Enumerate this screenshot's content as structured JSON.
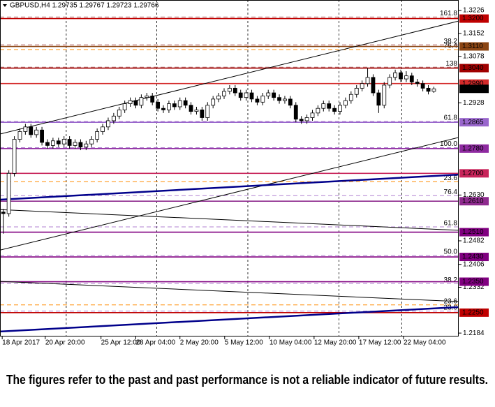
{
  "chart_data": {
    "type": "candlestick",
    "title": "GBPUSD,H4 1.29735 1.29767 1.29723 1.29766",
    "footnote": "The figures refer to the past and past performance is not a reliable indicator of future results.",
    "xlim": [
      -0.6,
      82.5
    ],
    "ylim": [
      1.2173,
      1.326
    ],
    "yticks": [
      {
        "value": 1.3226,
        "label": "1.3226"
      },
      {
        "value": 1.3152,
        "label": "1.3152"
      },
      {
        "value": 1.3078,
        "label": "1.3078"
      },
      {
        "value": 1.2928,
        "label": "1.2928"
      },
      {
        "value": 1.263,
        "label": "1.2630"
      },
      {
        "value": 1.2482,
        "label": "1.2482"
      },
      {
        "value": 1.2406,
        "label": "1.2406"
      },
      {
        "value": 1.2332,
        "label": "1.2332"
      },
      {
        "value": 1.2184,
        "label": "1.2184"
      }
    ],
    "xticks": [
      {
        "value": -0.2,
        "label": "18 Apr 2017"
      },
      {
        "value": 7.6,
        "label": "20 Apr 20:00"
      },
      {
        "value": 17.7,
        "label": "25 Apr 12:00"
      },
      {
        "value": 24,
        "label": "28 Apr 04:00"
      },
      {
        "value": 32,
        "label": "2 May 20:00"
      },
      {
        "value": 40.1,
        "label": "5 May 12:00"
      },
      {
        "value": 48.2,
        "label": "10 May 04:00"
      },
      {
        "value": 56.3,
        "label": "12 May 20:00"
      },
      {
        "value": 64.4,
        "label": "17 May 12:00"
      },
      {
        "value": 72.5,
        "label": "22 May 04:00"
      }
    ],
    "xgrid": [
      11.4,
      27.8,
      44.3,
      60.8,
      72.2
    ],
    "open": [
      1.2575,
      1.257,
      1.27,
      1.281,
      1.2835,
      1.285,
      1.2825,
      1.284,
      1.28,
      1.279,
      1.2805,
      1.2795,
      1.281,
      1.279,
      1.28,
      1.2785,
      1.2795,
      1.281,
      1.2835,
      1.285,
      1.287,
      1.2885,
      1.2905,
      1.2925,
      1.2935,
      1.292,
      1.2945,
      1.295,
      1.293,
      1.291,
      1.2905,
      1.2925,
      1.2915,
      1.2935,
      1.292,
      1.29,
      1.2905,
      1.288,
      1.292,
      1.294,
      1.295,
      1.2965,
      1.2975,
      1.296,
      1.2945,
      1.296,
      1.294,
      1.293,
      1.295,
      1.296,
      1.2945,
      1.2935,
      1.294,
      1.292,
      1.2875,
      1.287,
      1.288,
      1.2895,
      1.291,
      1.2925,
      1.291,
      1.29,
      1.292,
      1.2935,
      1.2955,
      1.2975,
      1.299,
      1.301,
      1.296,
      1.292,
      1.2985,
      1.301,
      1.3025,
      1.3005,
      1.3015,
      1.2995,
      1.299,
      1.2975,
      1.2965
    ],
    "high": [
      1.2585,
      1.271,
      1.282,
      1.2845,
      1.286,
      1.286,
      1.285,
      1.285,
      1.281,
      1.2815,
      1.2815,
      1.282,
      1.282,
      1.281,
      1.281,
      1.2805,
      1.282,
      1.2845,
      1.286,
      1.288,
      1.2895,
      1.2915,
      1.2935,
      1.2945,
      1.2945,
      1.2955,
      1.296,
      1.296,
      1.294,
      1.292,
      1.2935,
      1.2935,
      1.2945,
      1.2945,
      1.293,
      1.2915,
      1.2915,
      1.293,
      1.295,
      1.296,
      1.2975,
      1.2985,
      1.2985,
      1.297,
      1.297,
      1.297,
      1.295,
      1.296,
      1.297,
      1.297,
      1.2955,
      1.295,
      1.295,
      1.293,
      1.2885,
      1.289,
      1.2905,
      1.292,
      1.2935,
      1.2935,
      1.292,
      1.293,
      1.2945,
      1.2965,
      1.2985,
      1.3,
      1.304,
      1.302,
      1.297,
      1.2995,
      1.302,
      1.3035,
      1.3035,
      1.303,
      1.3025,
      1.3005,
      1.3,
      1.2985,
      1.298
    ],
    "low": [
      1.2505,
      1.256,
      1.269,
      1.28,
      1.2825,
      1.2815,
      1.2815,
      1.279,
      1.278,
      1.278,
      1.2785,
      1.2785,
      1.278,
      1.278,
      1.2775,
      1.2775,
      1.2785,
      1.28,
      1.2825,
      1.284,
      1.286,
      1.2875,
      1.2895,
      1.2915,
      1.291,
      1.291,
      1.2935,
      1.292,
      1.29,
      1.2895,
      1.2895,
      1.2905,
      1.2905,
      1.291,
      1.289,
      1.289,
      1.287,
      1.287,
      1.291,
      1.293,
      1.294,
      1.2955,
      1.295,
      1.2935,
      1.2935,
      1.293,
      1.292,
      1.292,
      1.294,
      1.2935,
      1.2925,
      1.2925,
      1.291,
      1.2865,
      1.286,
      1.286,
      1.287,
      1.2885,
      1.29,
      1.29,
      1.289,
      1.289,
      1.291,
      1.2925,
      1.2945,
      1.2965,
      1.298,
      1.295,
      1.2895,
      1.291,
      1.2975,
      1.3,
      1.2995,
      1.2995,
      1.2985,
      1.298,
      1.2965,
      1.2955,
      1.296
    ],
    "close": [
      1.257,
      1.27,
      1.281,
      1.2835,
      1.285,
      1.2825,
      1.284,
      1.28,
      1.279,
      1.2805,
      1.2795,
      1.281,
      1.279,
      1.28,
      1.2785,
      1.2795,
      1.281,
      1.2835,
      1.285,
      1.287,
      1.2885,
      1.2905,
      1.2925,
      1.2935,
      1.292,
      1.2945,
      1.295,
      1.293,
      1.291,
      1.2905,
      1.2925,
      1.2915,
      1.2935,
      1.292,
      1.29,
      1.2905,
      1.288,
      1.292,
      1.294,
      1.295,
      1.2965,
      1.2975,
      1.296,
      1.2945,
      1.296,
      1.294,
      1.293,
      1.295,
      1.296,
      1.2945,
      1.2935,
      1.294,
      1.292,
      1.2875,
      1.287,
      1.288,
      1.2895,
      1.291,
      1.2925,
      1.291,
      1.29,
      1.292,
      1.2935,
      1.2955,
      1.2975,
      1.299,
      1.301,
      1.296,
      1.292,
      1.2985,
      1.301,
      1.3025,
      1.3005,
      1.3015,
      1.2995,
      1.299,
      1.2975,
      1.2965,
      1.2973
    ],
    "levels": [
      {
        "value": 1.32,
        "label": "1.3200",
        "color": "#c00000"
      },
      {
        "value": 1.311,
        "label": "1.3110",
        "color": "#8b4513"
      },
      {
        "value": 1.304,
        "label": "1.3040",
        "color": "#a00000"
      },
      {
        "value": 1.299,
        "label": "1.2990",
        "color": "#d42a2a"
      },
      {
        "value": 1.2865,
        "label": "1.2865",
        "color": "#9966cc"
      },
      {
        "value": 1.278,
        "label": "1.2780",
        "color": "#8e2aa0"
      },
      {
        "value": 1.27,
        "label": "1.2700",
        "color": "#c8245a"
      },
      {
        "value": 1.261,
        "label": "1.2610",
        "color": "#8e2a8e"
      },
      {
        "value": 1.251,
        "label": "1.2510",
        "color": "#800080"
      },
      {
        "value": 1.243,
        "label": "1.2430",
        "color": "#800080"
      },
      {
        "value": 1.235,
        "label": "1.2350",
        "color": "#800080"
      },
      {
        "value": 1.225,
        "label": "1.2250",
        "color": "#c00000"
      }
    ],
    "current_price": {
      "value": 1.2973,
      "label": "1.2973"
    },
    "fib_levels": [
      {
        "value": 1.3205,
        "label": "161.8",
        "color": "#b06060"
      },
      {
        "value": 1.3115,
        "label": "38.2",
        "color": "#b06060"
      },
      {
        "value": 1.31,
        "label": "76.4",
        "color": "#ff8c00"
      },
      {
        "value": 1.3043,
        "label": "138",
        "color": "#b06060"
      },
      {
        "value": 1.2868,
        "label": "61.8",
        "color": "#b080d0"
      },
      {
        "value": 1.2783,
        "label": "100.0",
        "color": "#b080d0"
      },
      {
        "value": 1.2673,
        "label": "23.6",
        "color": "#ff8c00"
      },
      {
        "value": 1.2628,
        "label": "76.4",
        "color": "#b080d0"
      },
      {
        "value": 1.2527,
        "label": "61.8",
        "color": "#b080d0"
      },
      {
        "value": 1.2435,
        "label": "50.0",
        "color": "#b080d0"
      },
      {
        "value": 1.2344,
        "label": "38.2",
        "color": "#b080d0"
      },
      {
        "value": 1.2275,
        "label": "23.6",
        "color": "#ff8c00"
      },
      {
        "value": 1.2255,
        "label": "23.6",
        "color": "#b080d0"
      }
    ],
    "trend_lines": [
      {
        "x": [
          -0.6,
          82.5
        ],
        "values": [
          1.2827,
          1.3192
        ],
        "color": "#000000",
        "width": 1
      },
      {
        "x": [
          -0.6,
          82.5
        ],
        "values": [
          1.2452,
          1.2816
        ],
        "color": "#000000",
        "width": 1
      },
      {
        "x": [
          -0.6,
          82.5
        ],
        "values": [
          1.2615,
          1.2696
        ],
        "color": "#00008b",
        "width": 2.5
      },
      {
        "x": [
          -0.6,
          82.5
        ],
        "values": [
          1.2583,
          1.2516
        ],
        "color": "#000000",
        "width": 1
      },
      {
        "x": [
          -0.6,
          82.5
        ],
        "values": [
          1.2351,
          1.2286
        ],
        "color": "#000000",
        "width": 1
      },
      {
        "x": [
          -0.6,
          82.5
        ],
        "values": [
          1.2189,
          1.2268
        ],
        "color": "#00008b",
        "width": 2.5
      }
    ]
  }
}
